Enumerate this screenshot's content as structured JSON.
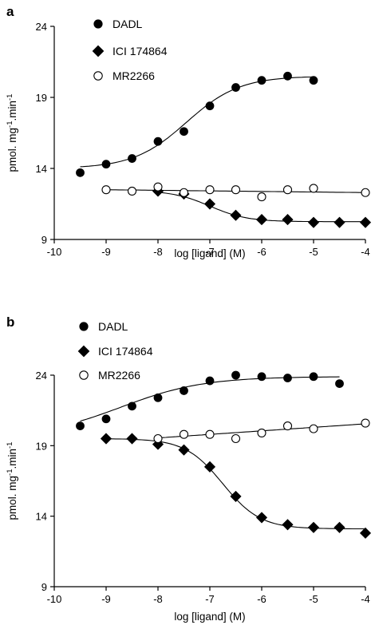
{
  "chart_data": [
    {
      "panel": "a",
      "type": "scatter",
      "xlabel": "log [ligand] (M)",
      "ylabel": "pmol. mg-1.min-1",
      "ylabel_parts": {
        "base": "pmol. mg",
        "sup1": "-1",
        "mid": ".min",
        "sup2": "-1"
      },
      "xlim": [
        -10,
        -4
      ],
      "ylim": [
        9,
        24
      ],
      "xticks": [
        -10,
        -9,
        -8,
        -7,
        -6,
        -5,
        -4
      ],
      "yticks": [
        9,
        14,
        19,
        24
      ],
      "legend_position": "top-left",
      "series": [
        {
          "name": "DADL",
          "marker": "filled-circle",
          "x": [
            -9.5,
            -9,
            -8.5,
            -8,
            -7.5,
            -7,
            -6.5,
            -6,
            -5.5,
            -5
          ],
          "y": [
            13.7,
            14.3,
            14.7,
            15.9,
            16.6,
            18.4,
            19.7,
            20.2,
            20.5,
            20.2
          ],
          "fit": {
            "model": "sigmoid",
            "bottom": 14.0,
            "top": 20.5,
            "logEC50": -7.45,
            "slope": 0.85,
            "xrange": [
              -9.5,
              -5
            ]
          }
        },
        {
          "name": "ICI 174864",
          "marker": "filled-diamond",
          "x": [
            -8,
            -7.5,
            -7,
            -6.5,
            -6,
            -5.5,
            -5,
            -4.5,
            -4
          ],
          "y": [
            12.4,
            12.2,
            11.5,
            10.7,
            10.4,
            10.4,
            10.2,
            10.2,
            10.2
          ],
          "fit": {
            "model": "sigmoid",
            "bottom": 10.25,
            "top": 12.45,
            "logEC50": -7.0,
            "slope": -1.2,
            "xrange": [
              -8,
              -4
            ]
          }
        },
        {
          "name": "MR2266",
          "marker": "open-circle",
          "x": [
            -9,
            -8.5,
            -8,
            -7.5,
            -7,
            -6.5,
            -6,
            -5.5,
            -5,
            -4
          ],
          "y": [
            12.5,
            12.4,
            12.7,
            12.3,
            12.5,
            12.5,
            12.0,
            12.5,
            12.6,
            12.3
          ],
          "fit": {
            "model": "linear",
            "intercept_at_x_start": 12.5,
            "slope": -0.04,
            "xrange": [
              -9,
              -4
            ]
          }
        }
      ]
    },
    {
      "panel": "b",
      "type": "scatter",
      "xlabel": "log [ligand] (M)",
      "ylabel": "pmol. mg-1.min-1",
      "ylabel_parts": {
        "base": "pmol. mg",
        "sup1": "-1",
        "mid": ".min",
        "sup2": "-1"
      },
      "xlim": [
        -10,
        -4
      ],
      "ylim": [
        9,
        24
      ],
      "xticks": [
        -10,
        -9,
        -8,
        -7,
        -6,
        -5,
        -4
      ],
      "yticks": [
        9,
        14,
        19,
        24
      ],
      "legend_position": "top-left",
      "series": [
        {
          "name": "DADL",
          "marker": "filled-circle",
          "x": [
            -9.5,
            -9,
            -8.5,
            -8,
            -7.5,
            -7,
            -6.5,
            -6,
            -5.5,
            -5,
            -4.5
          ],
          "y": [
            20.4,
            20.9,
            21.8,
            22.4,
            22.9,
            23.6,
            24.0,
            23.9,
            23.8,
            23.9,
            23.4
          ],
          "fit": {
            "model": "sigmoid",
            "bottom": 19.6,
            "top": 23.9,
            "logEC50": -8.7,
            "slope": 0.55,
            "xrange": [
              -9.5,
              -4.5
            ]
          }
        },
        {
          "name": "ICI 174864",
          "marker": "filled-diamond",
          "x": [
            -9,
            -8.5,
            -8,
            -7.5,
            -7,
            -6.5,
            -6,
            -5.5,
            -5,
            -4.5,
            -4
          ],
          "y": [
            19.5,
            19.5,
            19.1,
            18.7,
            17.5,
            15.4,
            13.9,
            13.4,
            13.2,
            13.2,
            12.8
          ],
          "fit": {
            "model": "sigmoid",
            "bottom": 13.1,
            "top": 19.5,
            "logEC50": -6.75,
            "slope": -1.2,
            "xrange": [
              -9,
              -4
            ]
          }
        },
        {
          "name": "MR2266",
          "marker": "open-circle",
          "x": [
            -8,
            -7.5,
            -7,
            -6.5,
            -6,
            -5.5,
            -5,
            -4
          ],
          "y": [
            19.5,
            19.8,
            19.8,
            19.5,
            19.9,
            20.4,
            20.2,
            20.6
          ],
          "fit": {
            "model": "linear",
            "intercept_at_x_start": 19.55,
            "slope": 0.25,
            "xrange": [
              -8,
              -4
            ]
          }
        }
      ]
    }
  ]
}
